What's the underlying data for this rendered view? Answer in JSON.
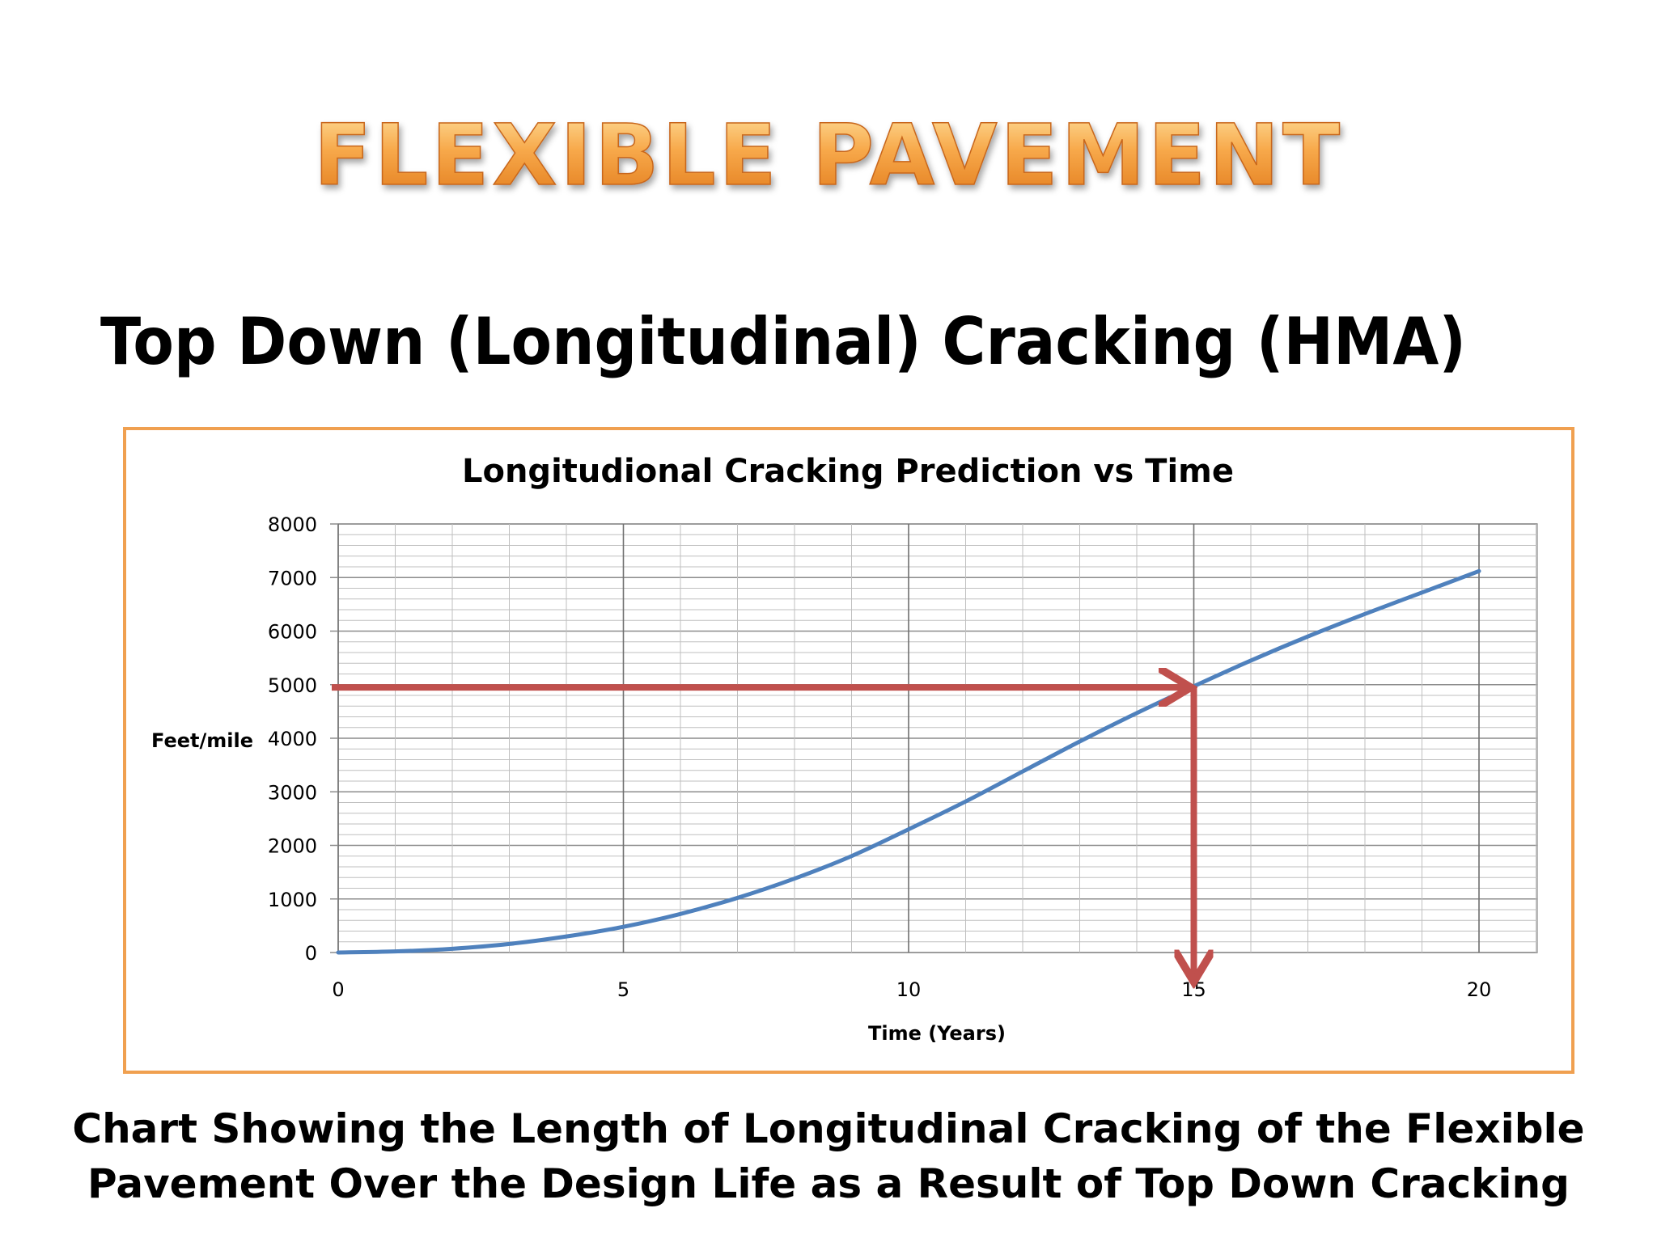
{
  "banner": {
    "title": "FLEXIBLE PAVEMENT",
    "color_top": "#FFD27A",
    "color_bottom": "#E8801E"
  },
  "slide": {
    "subtitle": "Top Down (Longitudinal) Cracking (HMA)"
  },
  "caption": {
    "line1": "Chart Showing the Length of Longitudinal Cracking of the Flexible",
    "line2": "Pavement Over the Design Life as a Result of Top Down Cracking"
  },
  "colors": {
    "frame": "#F0A050",
    "series": "#4F81BD",
    "arrow": "#C0504D"
  },
  "chart_data": {
    "type": "line",
    "title": "Longitudional Cracking Prediction vs Time",
    "xlabel": "Time (Years)",
    "ylabel": "Feet/mile",
    "xlim": [
      0,
      20
    ],
    "ylim": [
      0,
      8000
    ],
    "x_ticks": [
      0,
      5,
      10,
      15,
      20
    ],
    "y_ticks": [
      0,
      1000,
      2000,
      3000,
      4000,
      5000,
      6000,
      7000,
      8000
    ],
    "grid": true,
    "series": [
      {
        "x": [
          0,
          1,
          2,
          3,
          4,
          5,
          6,
          7,
          8,
          9,
          10,
          11,
          12,
          13,
          14,
          15,
          16,
          17,
          18,
          19,
          20
        ],
        "y": [
          0,
          20,
          70,
          160,
          300,
          480,
          720,
          1020,
          1380,
          1800,
          2300,
          2820,
          3380,
          3940,
          4470,
          4970,
          5450,
          5900,
          6320,
          6720,
          7120
        ]
      }
    ],
    "annotations": [
      {
        "type": "arrow",
        "from": [
          0,
          4950
        ],
        "to": [
          15,
          4950
        ]
      },
      {
        "type": "arrow",
        "from": [
          15,
          4950
        ],
        "to": [
          15,
          0
        ]
      }
    ]
  }
}
